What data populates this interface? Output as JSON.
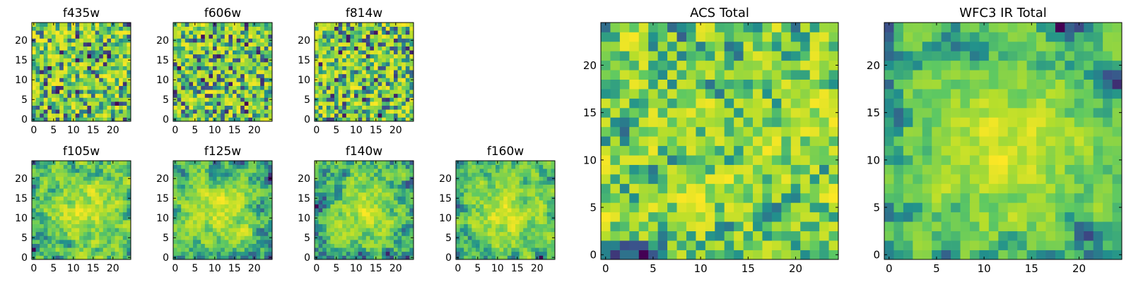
{
  "figure": {
    "background": "#ffffff"
  },
  "colormap": {
    "name": "viridis",
    "stops": [
      "#440154",
      "#3b528b",
      "#21918c",
      "#5ec962",
      "#b5de2b",
      "#fde725"
    ]
  },
  "chart_data": [
    {
      "id": "f435w",
      "type": "heatmap",
      "title": "f435w",
      "grid_size": 25,
      "xlim": [
        0,
        24
      ],
      "ylim": [
        0,
        24
      ],
      "xticks": [
        0,
        5,
        10,
        15,
        20
      ],
      "yticks": [
        0,
        5,
        10,
        15,
        20
      ],
      "seed": 11,
      "smoothness": 0,
      "hotspots": []
    },
    {
      "id": "f606w",
      "type": "heatmap",
      "title": "f606w",
      "grid_size": 25,
      "xlim": [
        0,
        24
      ],
      "ylim": [
        0,
        24
      ],
      "xticks": [
        0,
        5,
        10,
        15,
        20
      ],
      "yticks": [
        0,
        5,
        10,
        15,
        20
      ],
      "seed": 23,
      "smoothness": 0,
      "hotspots": []
    },
    {
      "id": "f814w",
      "type": "heatmap",
      "title": "f814w",
      "grid_size": 25,
      "xlim": [
        0,
        24
      ],
      "ylim": [
        0,
        24
      ],
      "xticks": [
        0,
        5,
        10,
        15,
        20
      ],
      "yticks": [
        0,
        5,
        10,
        15,
        20
      ],
      "seed": 37,
      "smoothness": 0,
      "hotspots": []
    },
    {
      "id": "f105w",
      "type": "heatmap",
      "title": "f105w",
      "grid_size": 25,
      "xlim": [
        0,
        24
      ],
      "ylim": [
        0,
        24
      ],
      "xticks": [
        0,
        5,
        10,
        15,
        20
      ],
      "yticks": [
        0,
        5,
        10,
        15,
        20
      ],
      "seed": 41,
      "smoothness": 2,
      "hotspots": [
        {
          "x": 13,
          "y": 12,
          "radius": 6,
          "amplitude": 0.35
        }
      ]
    },
    {
      "id": "f125w",
      "type": "heatmap",
      "title": "f125w",
      "grid_size": 25,
      "xlim": [
        0,
        24
      ],
      "ylim": [
        0,
        24
      ],
      "xticks": [
        0,
        5,
        10,
        15,
        20
      ],
      "yticks": [
        0,
        5,
        10,
        15,
        20
      ],
      "seed": 53,
      "smoothness": 2,
      "hotspots": [
        {
          "x": 12,
          "y": 12,
          "radius": 6,
          "amplitude": 0.35
        }
      ]
    },
    {
      "id": "f140w",
      "type": "heatmap",
      "title": "f140w",
      "grid_size": 25,
      "xlim": [
        0,
        24
      ],
      "ylim": [
        0,
        24
      ],
      "xticks": [
        0,
        5,
        10,
        15,
        20
      ],
      "yticks": [
        0,
        5,
        10,
        15,
        20
      ],
      "seed": 67,
      "smoothness": 2,
      "hotspots": [
        {
          "x": 12,
          "y": 12,
          "radius": 6,
          "amplitude": 0.35
        }
      ]
    },
    {
      "id": "f160w",
      "type": "heatmap",
      "title": "f160w",
      "grid_size": 25,
      "xlim": [
        0,
        24
      ],
      "ylim": [
        0,
        24
      ],
      "xticks": [
        0,
        5,
        10,
        15,
        20
      ],
      "yticks": [
        0,
        5,
        10,
        15,
        20
      ],
      "seed": 79,
      "smoothness": 2,
      "hotspots": [
        {
          "x": 12,
          "y": 11,
          "radius": 6,
          "amplitude": 0.4
        }
      ]
    },
    {
      "id": "acs-total",
      "type": "heatmap",
      "title": "ACS Total",
      "grid_size": 25,
      "xlim": [
        0,
        24
      ],
      "ylim": [
        0,
        24
      ],
      "xticks": [
        0,
        5,
        10,
        15,
        20
      ],
      "yticks": [
        0,
        5,
        10,
        15,
        20
      ],
      "seed": 97,
      "smoothness": 1,
      "hotspots": []
    },
    {
      "id": "wfc3-ir-total",
      "type": "heatmap",
      "title": "WFC3 IR Total",
      "grid_size": 25,
      "xlim": [
        0,
        24
      ],
      "ylim": [
        0,
        24
      ],
      "xticks": [
        0,
        5,
        10,
        15,
        20
      ],
      "yticks": [
        0,
        5,
        10,
        15,
        20
      ],
      "seed": 113,
      "smoothness": 2,
      "hotspots": [
        {
          "x": 12,
          "y": 11,
          "radius": 7,
          "amplitude": 0.45
        }
      ]
    }
  ]
}
